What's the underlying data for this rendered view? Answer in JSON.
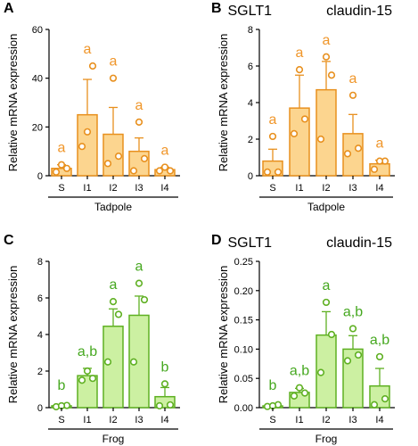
{
  "colors": {
    "tadpole_fill": "#fcd58f",
    "tadpole_stroke": "#e8901e",
    "tadpole_text": "#f0962a",
    "frog_fill": "#ccf0a2",
    "frog_stroke": "#5fb022",
    "frog_text": "#46a820"
  },
  "chart_data": [
    {
      "panel": "A",
      "type": "bar",
      "title": "SGLT1",
      "ylabel": "Relative mRNA expression",
      "group_label": "Tadpole",
      "categories": [
        "S",
        "I1",
        "I2",
        "I3",
        "I4"
      ],
      "ylim": [
        0,
        60
      ],
      "yticks": [
        "0",
        "20",
        "40",
        "60"
      ],
      "values": [
        3,
        25,
        17,
        10,
        2.5
      ],
      "errors": [
        1.5,
        14.5,
        11,
        5.5,
        1
      ],
      "points": [
        [
          1.5,
          3,
          4.5
        ],
        [
          12,
          45,
          18
        ],
        [
          5,
          8,
          40
        ],
        [
          2,
          7,
          22
        ],
        [
          2,
          2,
          3.5
        ]
      ],
      "letters": [
        "a",
        "a",
        "a",
        "a",
        "a"
      ],
      "scheme": "tadpole"
    },
    {
      "panel": "B",
      "type": "bar",
      "title": "claudin-15",
      "ylabel": "Relative mRNA expression",
      "group_label": "Tadpole",
      "categories": [
        "S",
        "I1",
        "I2",
        "I3",
        "I4"
      ],
      "ylim": [
        0,
        8
      ],
      "yticks": [
        "0",
        "2",
        "4",
        "6",
        "8"
      ],
      "values": [
        0.8,
        3.7,
        4.7,
        2.3,
        0.65
      ],
      "errors": [
        0.65,
        1.8,
        1.55,
        1.05,
        0.2
      ],
      "points": [
        [
          0.2,
          0.2,
          2.15
        ],
        [
          2.3,
          3.1,
          5.8
        ],
        [
          2,
          5.5,
          6.5
        ],
        [
          1.2,
          1.5,
          4.4
        ],
        [
          0.35,
          0.8,
          0.8
        ]
      ],
      "letters": [
        "a",
        "a",
        "a",
        "a",
        "a"
      ],
      "scheme": "tadpole"
    },
    {
      "panel": "C",
      "type": "bar",
      "title": "SGLT1",
      "ylabel": "Relative mRNA expression",
      "group_label": "Frog",
      "categories": [
        "S",
        "I1",
        "I2",
        "I3",
        "I4"
      ],
      "ylim": [
        0,
        8
      ],
      "yticks": [
        "0",
        "2",
        "4",
        "6",
        "8"
      ],
      "values": [
        0.1,
        1.75,
        4.45,
        5.05,
        0.6
      ],
      "errors": [
        0.05,
        0.4,
        0.95,
        1.05,
        0.5
      ],
      "points": [
        [
          0.05,
          0.12,
          0.1
        ],
        [
          1.5,
          1.6,
          2.0
        ],
        [
          2.5,
          5.1,
          5.8
        ],
        [
          2.5,
          5.9,
          6.8
        ],
        [
          0.1,
          0.15,
          1.3
        ]
      ],
      "letters": [
        "b",
        "a,b",
        "a",
        "a",
        "b"
      ],
      "scheme": "frog"
    },
    {
      "panel": "D",
      "type": "bar",
      "title": "claudin-15",
      "ylabel": "Relative mRNA expression",
      "group_label": "Frog",
      "categories": [
        "S",
        "I1",
        "I2",
        "I3",
        "I4"
      ],
      "ylim": [
        0,
        0.25
      ],
      "yticks": [
        "0.00",
        "0.05",
        "0.10",
        "0.15",
        "0.20",
        "0.25"
      ],
      "values": [
        0.003,
        0.026,
        0.124,
        0.1,
        0.037
      ],
      "errors": [
        0.002,
        0.007,
        0.04,
        0.023,
        0.03
      ],
      "points": [
        [
          0.002,
          0.005,
          0.003
        ],
        [
          0.02,
          0.025,
          0.034
        ],
        [
          0.06,
          0.125,
          0.18
        ],
        [
          0.08,
          0.09,
          0.135
        ],
        [
          0.005,
          0.015,
          0.087
        ]
      ],
      "letters": [
        "b",
        "a,b",
        "a",
        "a,b",
        "a,b"
      ],
      "scheme": "frog"
    }
  ]
}
